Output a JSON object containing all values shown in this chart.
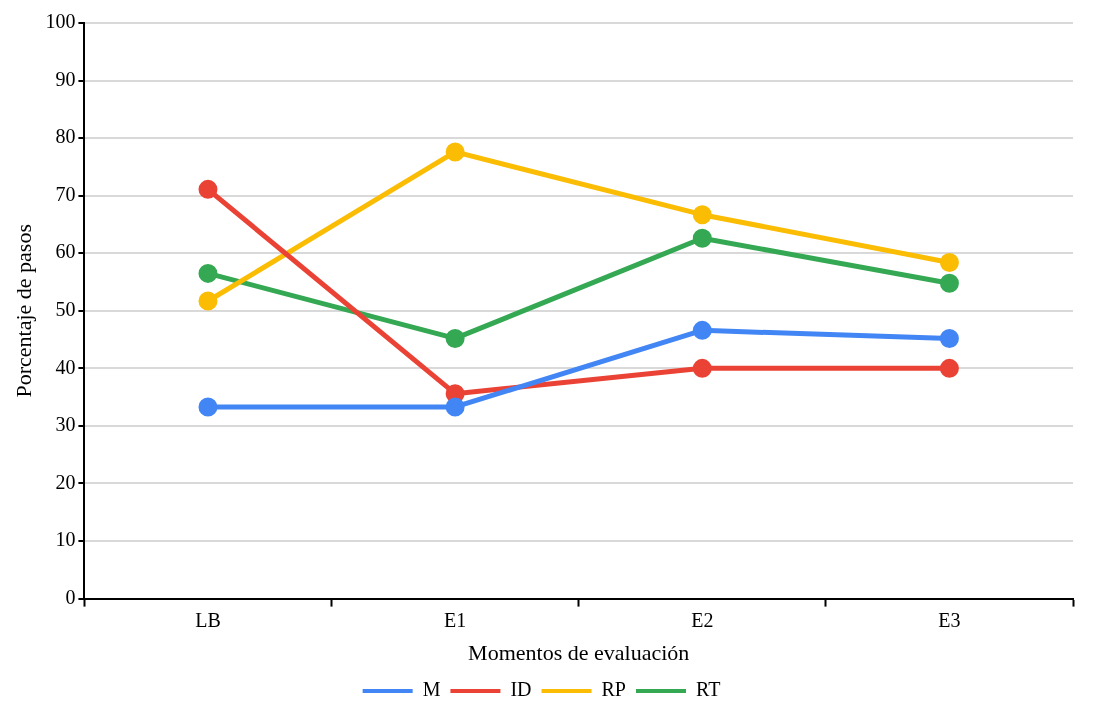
{
  "chart_data": {
    "type": "line",
    "xlabel": "Momentos de evaluación",
    "ylabel": "Porcentaje de pasos",
    "categories": [
      "LB",
      "E1",
      "E2",
      "E3"
    ],
    "series": [
      {
        "name": "M",
        "color": "#4285f4",
        "values": [
          33.3,
          33.3,
          46.6,
          45.2
        ]
      },
      {
        "name": "ID",
        "color": "#ea4335",
        "values": [
          71.1,
          35.6,
          40,
          40
        ]
      },
      {
        "name": "RP",
        "color": "#fbbc04",
        "values": [
          51.7,
          77.6,
          66.7,
          58.4
        ]
      },
      {
        "name": "RT",
        "color": "#34a853",
        "values": [
          56.5,
          45.2,
          62.6,
          54.8
        ]
      }
    ],
    "ylim": [
      0,
      100
    ],
    "yticks": [
      0,
      10,
      20,
      30,
      40,
      50,
      60,
      70,
      80,
      90,
      100
    ],
    "grid": "y",
    "legend": "bottom",
    "marker": "circle",
    "line_style": "solid"
  }
}
